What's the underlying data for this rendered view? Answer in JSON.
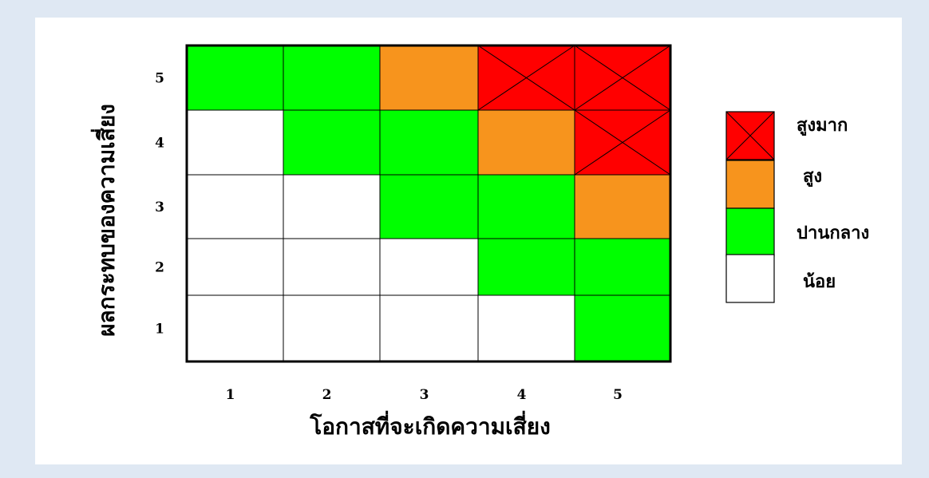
{
  "chart_data": {
    "type": "heatmap",
    "x": [
      1,
      2,
      3,
      4,
      5
    ],
    "y": [
      1,
      2,
      3,
      4,
      5
    ],
    "xlabel": "โอกาสที่จะเกิดความเสี่ยง",
    "ylabel": "ผลกระทบของความเสี่ยง",
    "x_tick_labels": [
      "1",
      "2",
      "3",
      "4",
      "5"
    ],
    "y_tick_labels": [
      "1",
      "2",
      "3",
      "4",
      "5"
    ],
    "levels": [
      {
        "key": "very_high",
        "label": "สูงมาก",
        "color": "#ff0000",
        "crossed": true
      },
      {
        "key": "high",
        "label": "สูง",
        "color": "#f7941d",
        "crossed": false
      },
      {
        "key": "medium",
        "label": "ปานกลาง",
        "color": "#00ff00",
        "crossed": false
      },
      {
        "key": "low",
        "label": "น้อย",
        "color": "#ffffff",
        "crossed": false
      }
    ],
    "grid_rows_top_to_bottom": [
      {
        "impact": 5,
        "cells": [
          "medium",
          "medium",
          "high",
          "very_high",
          "very_high"
        ]
      },
      {
        "impact": 4,
        "cells": [
          "low",
          "medium",
          "medium",
          "high",
          "very_high"
        ]
      },
      {
        "impact": 3,
        "cells": [
          "low",
          "low",
          "medium",
          "medium",
          "high"
        ]
      },
      {
        "impact": 2,
        "cells": [
          "low",
          "low",
          "low",
          "medium",
          "medium"
        ]
      },
      {
        "impact": 1,
        "cells": [
          "low",
          "low",
          "low",
          "low",
          "medium"
        ]
      }
    ],
    "legend_position": "right"
  }
}
